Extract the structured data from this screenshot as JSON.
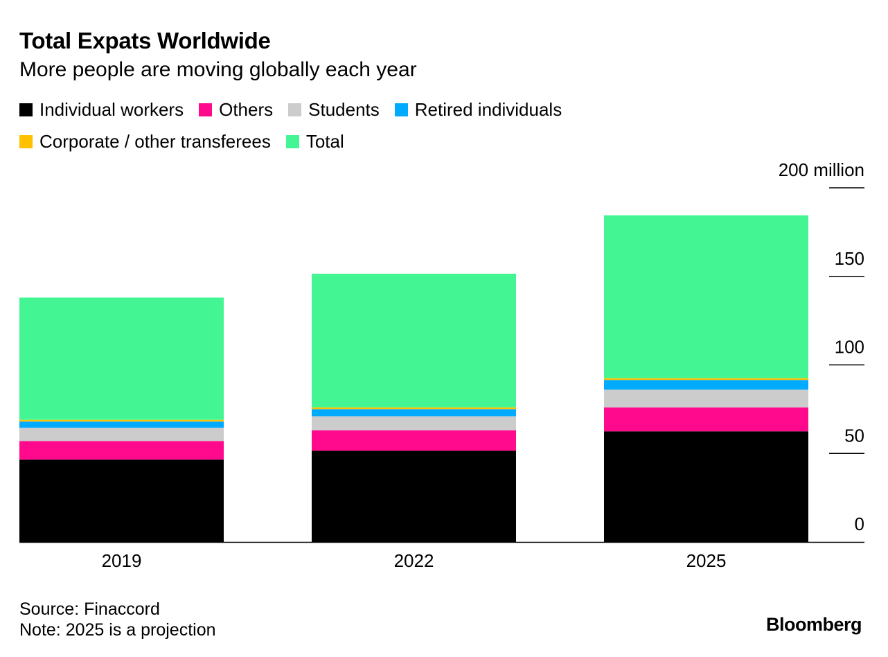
{
  "title": "Total Expats Worldwide",
  "subtitle": "More people are moving globally each year",
  "chart_data": {
    "type": "bar",
    "stacked": true,
    "categories": [
      "2019",
      "2022",
      "2025"
    ],
    "series": [
      {
        "name": "Individual workers",
        "color": "#000000",
        "values": [
          46.5,
          51.5,
          62.5
        ]
      },
      {
        "name": "Others",
        "color": "#ff0a8c",
        "values": [
          10.5,
          11.5,
          13.5
        ]
      },
      {
        "name": "Students",
        "color": "#cccccc",
        "values": [
          7.5,
          8.0,
          10.0
        ]
      },
      {
        "name": "Retired individuals",
        "color": "#00aaff",
        "values": [
          3.5,
          4.0,
          5.5
        ]
      },
      {
        "name": "Corporate / other transferees",
        "color": "#ffc000",
        "values": [
          1.0,
          1.0,
          1.0
        ]
      },
      {
        "name": "Total",
        "color": "#43f693",
        "values": [
          69.0,
          75.5,
          92.0
        ]
      }
    ],
    "ylim": [
      0,
      200
    ],
    "yticks": [
      0,
      50,
      100,
      150,
      200
    ],
    "ytick_labels": [
      "0",
      "50",
      "100",
      "150",
      "200 million"
    ],
    "legend_position": "top-left"
  },
  "footer": {
    "source": "Source: Finaccord",
    "note": "Note: 2025 is a projection"
  },
  "brand": "Bloomberg"
}
